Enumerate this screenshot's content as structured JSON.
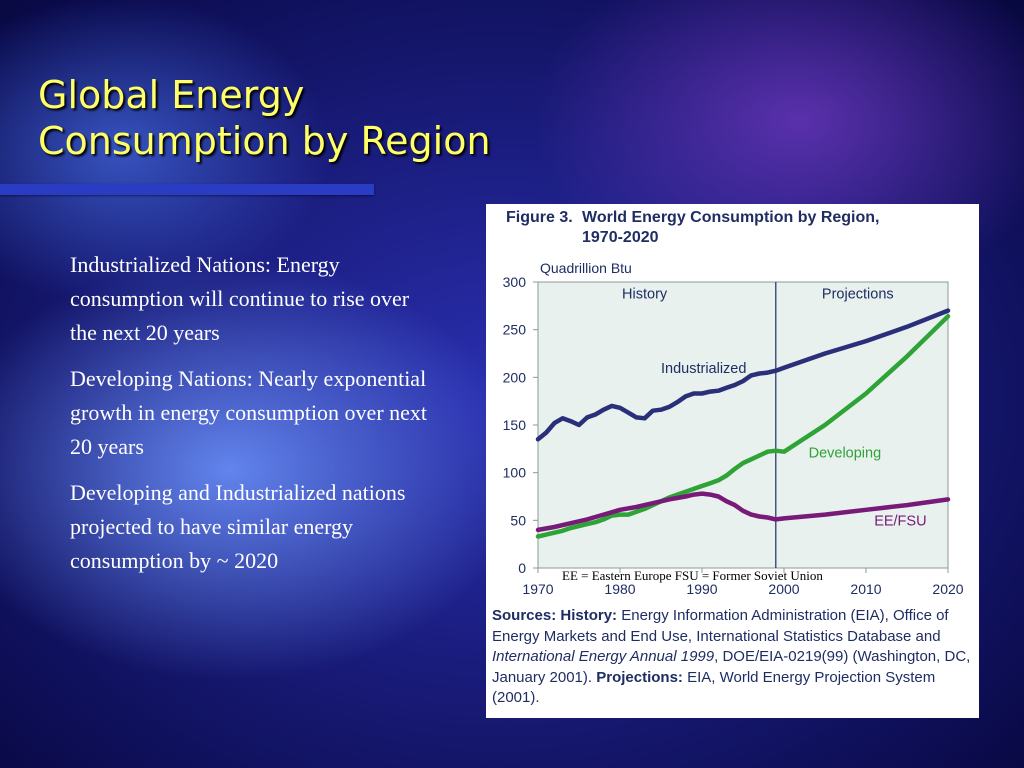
{
  "slide": {
    "title_line1": "Global Energy",
    "title_line2": "Consumption by Region",
    "bullets": [
      "Industrialized Nations: Energy consumption will continue to rise over the next 20 years",
      "Developing Nations: Nearly exponential growth in energy consumption over next 20 years",
      "Developing and Industrialized nations projected to have similar energy consumption by ~ 2020"
    ],
    "colors": {
      "title": "#ffff66",
      "background": "#1a1f8f",
      "rule": "#2b3cc4"
    }
  },
  "figure": {
    "figure_number": "Figure 3.",
    "title_line1": "World Energy Consumption by Region,",
    "title_line2": "1970-2020",
    "note": "EE = Eastern Europe    FSU = Former Soviet Union",
    "sources_label": "Sources:",
    "history_label": "History:",
    "sources_text_1": " Energy Information Administration (EIA), Office of Energy Markets and End Use, International Statistics Database and ",
    "sources_italic": "International Energy Annual 1999",
    "sources_text_2": ", DOE/EIA-0219(99) (Washington, DC, January 2001). ",
    "projections_label": "Projections:",
    "sources_text_3": " EIA, World Energy Projection System (2001)."
  },
  "chart_data": {
    "type": "line",
    "ylabel": "Quadrillion Btu",
    "ylim": [
      0,
      300
    ],
    "xlim": [
      1970,
      2020
    ],
    "yticks": [
      0,
      50,
      100,
      150,
      200,
      250,
      300
    ],
    "xticks": [
      1970,
      1980,
      1990,
      2000,
      2010,
      2020
    ],
    "grid": false,
    "divider_year": 1999,
    "annotations": [
      {
        "text": "History",
        "x": 1983,
        "y": 288
      },
      {
        "text": "Projections",
        "x": 2009,
        "y": 288
      }
    ],
    "colors": {
      "plot_bg": "#e8f1ee",
      "industrialized": "#2a2f7a",
      "developing": "#2ea336",
      "ee_fsu": "#781a78",
      "divider": "#1f2d63"
    },
    "series": [
      {
        "name": "Industrialized",
        "label_pos": {
          "x": 1985,
          "y": 210
        },
        "x": [
          1970,
          1971,
          1972,
          1973,
          1974,
          1975,
          1976,
          1977,
          1978,
          1979,
          1980,
          1981,
          1982,
          1983,
          1984,
          1985,
          1986,
          1987,
          1988,
          1989,
          1990,
          1991,
          1992,
          1993,
          1994,
          1995,
          1996,
          1997,
          1998,
          1999,
          2000,
          2005,
          2010,
          2015,
          2020
        ],
        "values": [
          135,
          142,
          152,
          157,
          154,
          150,
          158,
          161,
          166,
          170,
          168,
          163,
          158,
          157,
          165,
          166,
          169,
          174,
          180,
          183,
          183,
          185,
          186,
          189,
          192,
          196,
          202,
          204,
          205,
          207,
          210,
          225,
          238,
          253,
          270
        ]
      },
      {
        "name": "Developing",
        "label_pos": {
          "x": 2003,
          "y": 121
        },
        "x": [
          1970,
          1971,
          1972,
          1973,
          1974,
          1975,
          1976,
          1977,
          1978,
          1979,
          1980,
          1981,
          1982,
          1983,
          1984,
          1985,
          1986,
          1987,
          1988,
          1989,
          1990,
          1991,
          1992,
          1993,
          1994,
          1995,
          1996,
          1997,
          1998,
          1999,
          2000,
          2005,
          2010,
          2015,
          2020
        ],
        "values": [
          33,
          35,
          37,
          39,
          42,
          44,
          46,
          48,
          51,
          55,
          56,
          56,
          59,
          62,
          66,
          70,
          74,
          77,
          80,
          83,
          86,
          89,
          92,
          97,
          104,
          110,
          114,
          118,
          122,
          123,
          122,
          150,
          183,
          222,
          264
        ]
      },
      {
        "name": "EE/FSU",
        "label_pos": {
          "x": 2011,
          "y": 50
        },
        "x": [
          1970,
          1972,
          1974,
          1976,
          1978,
          1980,
          1982,
          1984,
          1986,
          1988,
          1989,
          1990,
          1991,
          1992,
          1993,
          1994,
          1995,
          1996,
          1997,
          1998,
          1999,
          2000,
          2005,
          2010,
          2015,
          2020
        ],
        "values": [
          40,
          43,
          47,
          51,
          56,
          61,
          64,
          68,
          72,
          75,
          77,
          78,
          77,
          75,
          70,
          66,
          60,
          56,
          54,
          53,
          51,
          52,
          56,
          61,
          66,
          72
        ]
      }
    ]
  }
}
